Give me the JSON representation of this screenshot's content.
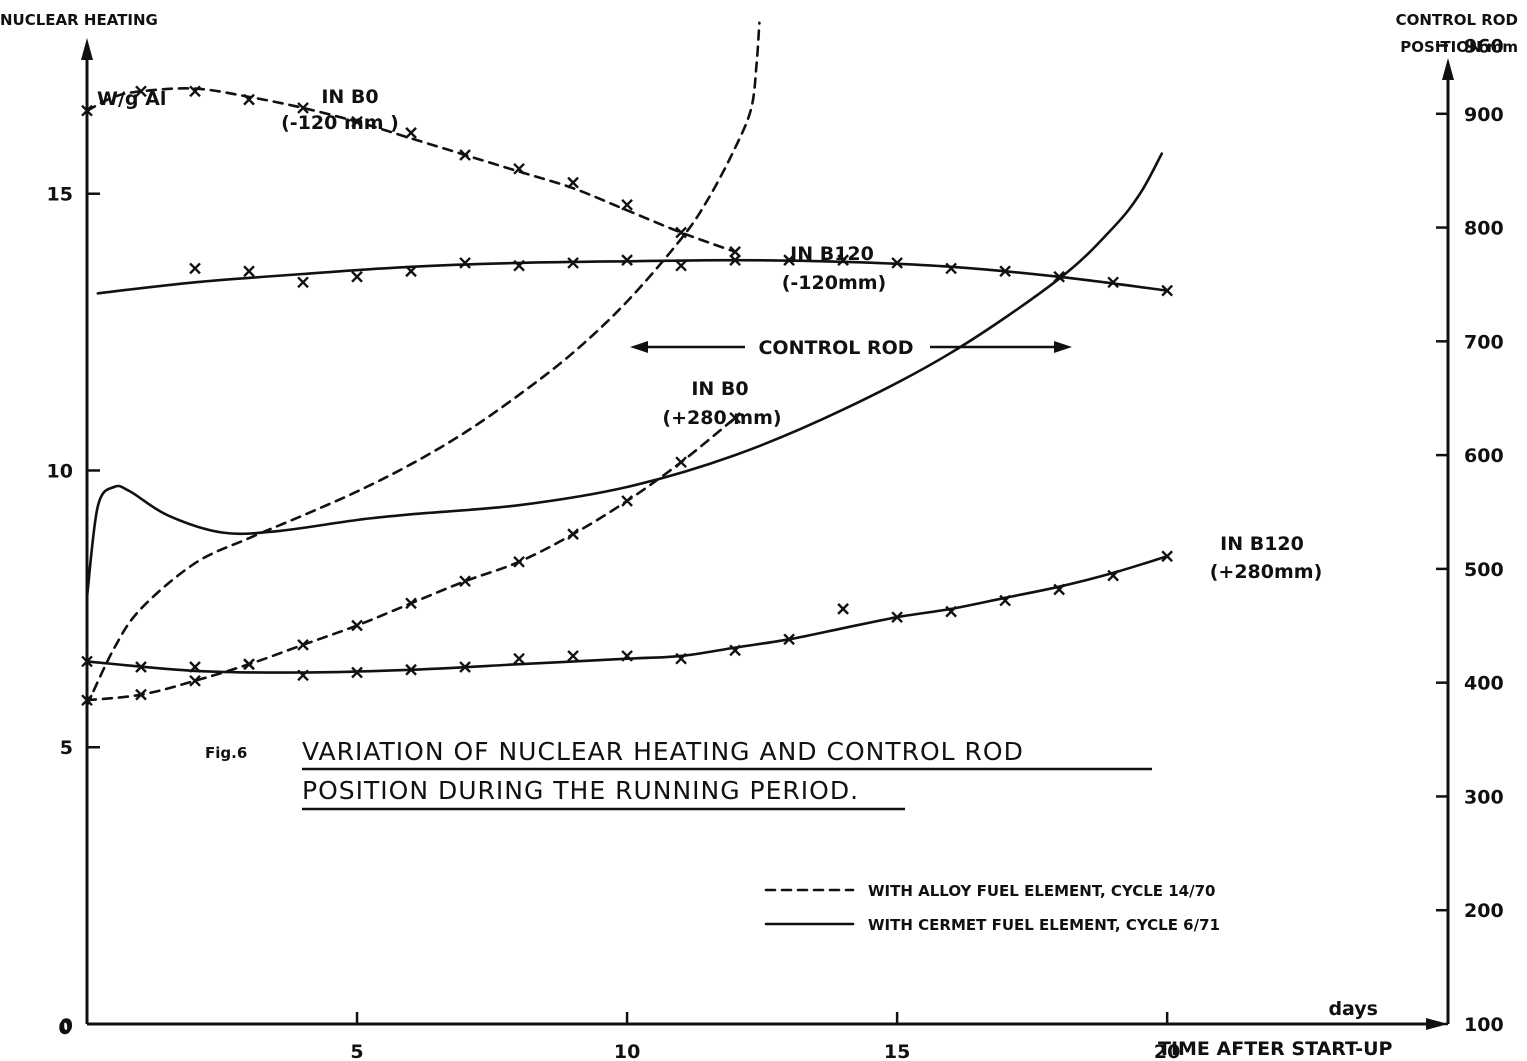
{
  "chart_data": {
    "type": "line",
    "title": "VARIATION OF NUCLEAR HEATING AND CONTROL ROD",
    "title_line2": "POSITION DURING THE RUNNING PERIOD.",
    "figure_label": "Fig.6",
    "y_left": {
      "label": "NUCLEAR HEATING",
      "unit": "W/g Al",
      "ticks": [
        0,
        5,
        10,
        15
      ],
      "ylim": [
        0,
        18.5
      ]
    },
    "y_right": {
      "label_line1": "CONTROL ROD",
      "label_line2": "POSITION  mm",
      "ticks": [
        100,
        200,
        300,
        400,
        500,
        600,
        700,
        800,
        900,
        960
      ],
      "ylim": [
        100,
        1000
      ]
    },
    "x_axis": {
      "unit": "days",
      "label": "TIME AFTER START-UP",
      "ticks": [
        0,
        5,
        10,
        15,
        20
      ],
      "tick_labels": [
        "0",
        "5",
        "10",
        "15",
        "20"
      ],
      "xlim": [
        0,
        25.2
      ]
    },
    "legend": {
      "placement": "bottom-right",
      "entries": [
        {
          "style": "dashed",
          "label": "WITH ALLOY FUEL ELEMENT, CYCLE 14/70"
        },
        {
          "style": "solid",
          "label": "WITH CERMET FUEL ELEMENT, CYCLE 6/71"
        }
      ]
    },
    "annotations": [
      {
        "id": "b0-minus120-line1",
        "text": "IN B0"
      },
      {
        "id": "b0-minus120-line2",
        "text": "(-120 mm )"
      },
      {
        "id": "b120-minus120-line1",
        "text": "IN B120"
      },
      {
        "id": "b120-minus120-line2",
        "text": "(-120mm)"
      },
      {
        "id": "control-rod",
        "text": "CONTROL ROD"
      },
      {
        "id": "b0-plus280-line1",
        "text": "IN B0"
      },
      {
        "id": "b0-plus280-line2",
        "text": "(+280 mm)"
      },
      {
        "id": "b120-plus280-line1",
        "text": "IN B120"
      },
      {
        "id": "b120-plus280-line2",
        "text": "(+280mm)"
      }
    ],
    "series": [
      {
        "id": "b0-minus120",
        "style": "dashed",
        "axis": "left",
        "curve": [
          [
            0,
            16.5
          ],
          [
            0.5,
            16.75
          ],
          [
            1,
            16.85
          ],
          [
            2,
            16.9
          ],
          [
            3,
            16.75
          ],
          [
            4,
            16.55
          ],
          [
            5,
            16.3
          ],
          [
            6,
            16.0
          ],
          [
            7,
            15.7
          ],
          [
            8,
            15.4
          ],
          [
            9,
            15.1
          ],
          [
            10,
            14.7
          ],
          [
            11,
            14.3
          ],
          [
            12,
            13.95
          ]
        ],
        "points": [
          [
            0,
            16.5
          ],
          [
            1,
            16.85
          ],
          [
            2,
            16.85
          ],
          [
            3,
            16.7
          ],
          [
            4,
            16.55
          ],
          [
            5,
            16.3
          ],
          [
            6,
            16.1
          ],
          [
            7,
            15.7
          ],
          [
            8,
            15.45
          ],
          [
            9,
            15.2
          ],
          [
            10,
            14.8
          ],
          [
            11,
            14.3
          ],
          [
            12,
            13.95
          ]
        ]
      },
      {
        "id": "b120-minus120",
        "style": "solid",
        "axis": "left",
        "curve": [
          [
            0.2,
            13.2
          ],
          [
            2,
            13.4
          ],
          [
            4,
            13.55
          ],
          [
            6,
            13.68
          ],
          [
            8,
            13.75
          ],
          [
            10,
            13.78
          ],
          [
            12,
            13.8
          ],
          [
            14,
            13.77
          ],
          [
            16,
            13.68
          ],
          [
            18,
            13.5
          ],
          [
            20,
            13.25
          ]
        ],
        "points": [
          [
            2,
            13.65
          ],
          [
            3,
            13.6
          ],
          [
            4,
            13.4
          ],
          [
            5,
            13.5
          ],
          [
            6,
            13.6
          ],
          [
            7,
            13.75
          ],
          [
            8,
            13.7
          ],
          [
            9,
            13.75
          ],
          [
            10,
            13.8
          ],
          [
            11,
            13.7
          ],
          [
            12,
            13.8
          ],
          [
            13,
            13.8
          ],
          [
            14,
            13.8
          ],
          [
            15,
            13.75
          ],
          [
            16,
            13.65
          ],
          [
            17,
            13.6
          ],
          [
            18,
            13.5
          ],
          [
            19,
            13.4
          ],
          [
            20,
            13.25
          ]
        ]
      },
      {
        "id": "b0-plus280",
        "style": "dashed",
        "axis": "left",
        "curve": [
          [
            0,
            5.85
          ],
          [
            1,
            5.95
          ],
          [
            2,
            6.2
          ],
          [
            3,
            6.5
          ],
          [
            4,
            6.85
          ],
          [
            5,
            7.2
          ],
          [
            6,
            7.6
          ],
          [
            7,
            8.0
          ],
          [
            8,
            8.35
          ],
          [
            9,
            8.85
          ],
          [
            10,
            9.45
          ],
          [
            11,
            10.15
          ],
          [
            12,
            10.95
          ]
        ],
        "points": [
          [
            0,
            5.85
          ],
          [
            1,
            5.95
          ],
          [
            2,
            6.2
          ],
          [
            3,
            6.5
          ],
          [
            4,
            6.85
          ],
          [
            5,
            7.2
          ],
          [
            6,
            7.6
          ],
          [
            7,
            8.0
          ],
          [
            8,
            8.35
          ],
          [
            9,
            8.85
          ],
          [
            10,
            9.45
          ],
          [
            11,
            10.15
          ],
          [
            12,
            10.95
          ]
        ]
      },
      {
        "id": "b120-plus280",
        "style": "solid",
        "axis": "left",
        "curve": [
          [
            0,
            6.55
          ],
          [
            2,
            6.38
          ],
          [
            4,
            6.35
          ],
          [
            6,
            6.4
          ],
          [
            8,
            6.5
          ],
          [
            10,
            6.6
          ],
          [
            11,
            6.65
          ],
          [
            12,
            6.8
          ],
          [
            13,
            6.95
          ],
          [
            14,
            7.15
          ],
          [
            15,
            7.35
          ],
          [
            16,
            7.5
          ],
          [
            17,
            7.7
          ],
          [
            18,
            7.9
          ],
          [
            19,
            8.15
          ],
          [
            20,
            8.45
          ]
        ],
        "points": [
          [
            0,
            6.55
          ],
          [
            1,
            6.45
          ],
          [
            2,
            6.45
          ],
          [
            3,
            6.5
          ],
          [
            4,
            6.3
          ],
          [
            5,
            6.35
          ],
          [
            6,
            6.4
          ],
          [
            7,
            6.45
          ],
          [
            8,
            6.6
          ],
          [
            9,
            6.65
          ],
          [
            10,
            6.65
          ],
          [
            11,
            6.6
          ],
          [
            12,
            6.75
          ],
          [
            13,
            6.95
          ],
          [
            14,
            7.5
          ],
          [
            15,
            7.35
          ],
          [
            16,
            7.45
          ],
          [
            17,
            7.65
          ],
          [
            18,
            7.85
          ],
          [
            19,
            8.1
          ],
          [
            20,
            8.45
          ]
        ]
      },
      {
        "id": "control-rod-alloy",
        "style": "dashed",
        "axis": "right",
        "curve": [
          [
            0,
            380
          ],
          [
            0.5,
            430
          ],
          [
            1,
            465
          ],
          [
            2,
            505
          ],
          [
            3,
            527
          ],
          [
            4,
            547
          ],
          [
            5,
            568
          ],
          [
            6,
            592
          ],
          [
            7,
            620
          ],
          [
            8,
            653
          ],
          [
            9,
            690
          ],
          [
            10,
            735
          ],
          [
            11,
            790
          ],
          [
            11.5,
            825
          ],
          [
            12,
            870
          ],
          [
            12.3,
            905
          ],
          [
            12.4,
            945
          ],
          [
            12.45,
            980
          ]
        ]
      },
      {
        "id": "control-rod-cermet",
        "style": "solid",
        "axis": "right",
        "curve": [
          [
            0,
            475
          ],
          [
            0.2,
            555
          ],
          [
            0.5,
            572
          ],
          [
            0.8,
            568
          ],
          [
            1.5,
            547
          ],
          [
            2.5,
            532
          ],
          [
            3.5,
            533
          ],
          [
            5,
            543
          ],
          [
            6,
            548
          ],
          [
            8,
            556
          ],
          [
            10,
            572
          ],
          [
            12,
            600
          ],
          [
            14,
            640
          ],
          [
            16,
            690
          ],
          [
            18,
            755
          ],
          [
            19,
            800
          ],
          [
            19.5,
            830
          ],
          [
            19.9,
            865
          ]
        ]
      }
    ]
  }
}
